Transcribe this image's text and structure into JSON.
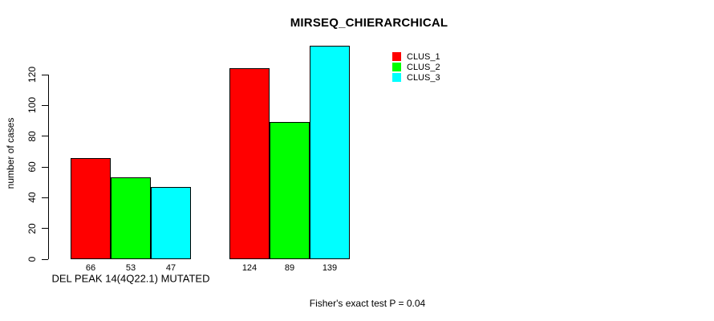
{
  "chart_data": {
    "type": "bar",
    "title": "MIRSEQ_CHIERARCHICAL",
    "ylabel": "number of cases",
    "ylim": [
      0,
      120
    ],
    "yticks": [
      0,
      20,
      40,
      60,
      80,
      100,
      120
    ],
    "categories": [
      "DEL PEAK 14(4Q22.1) MUTATED",
      ""
    ],
    "series": [
      {
        "name": "CLUS_1",
        "color": "#ff0000",
        "values": [
          66,
          124
        ]
      },
      {
        "name": "CLUS_2",
        "color": "#00ff00",
        "values": [
          53,
          89
        ]
      },
      {
        "name": "CLUS_3",
        "color": "#00ffff",
        "values": [
          47,
          139
        ]
      }
    ],
    "grid": false,
    "legend_position": "top-right",
    "footnote": "Fisher's exact test P = 0.04"
  }
}
